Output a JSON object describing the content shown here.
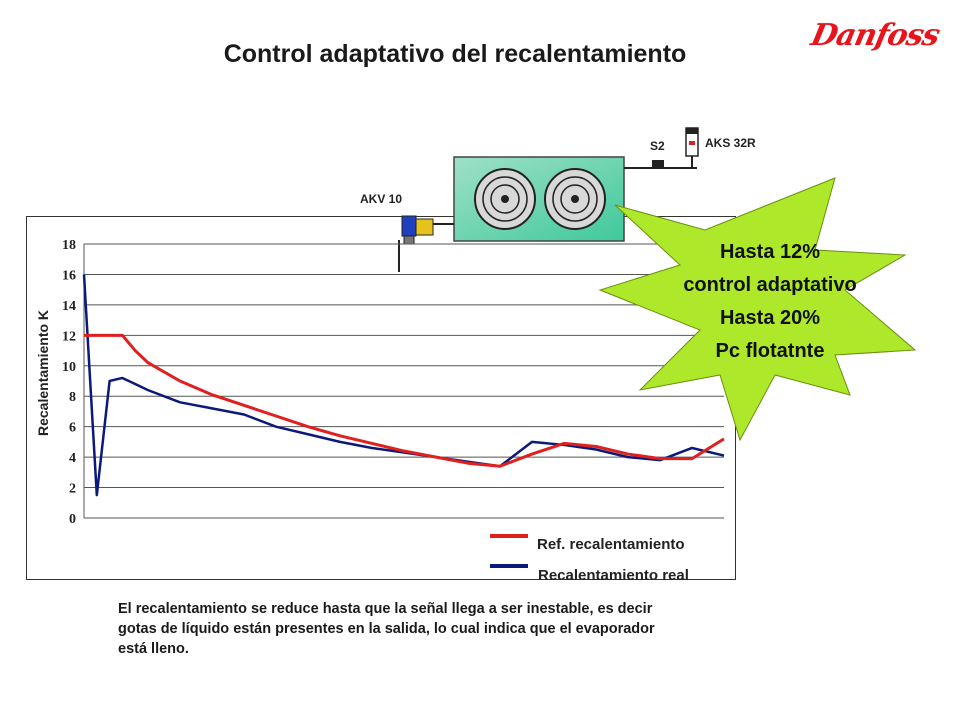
{
  "title": "Control adaptativo del recalentamiento",
  "brand": "Danfoss",
  "equipment": {
    "valve_label": "AKV 10",
    "sensor_s2_label": "S2",
    "pressure_sensor_label": "AKS 32R"
  },
  "callout": {
    "line1": "Hasta 12%",
    "line2": "control adaptativo",
    "line3": "Hasta 20%",
    "line4": "Pc flotatnte",
    "color": "#aee82a"
  },
  "note": "El recalentamiento se reduce hasta que la señal llega a ser inestable, es decir gotas de líquido están presentes en la salida, lo cual indica que el evaporador está lleno.",
  "chart_data": {
    "type": "line",
    "ylabel": "Recalentamiento K",
    "xlabel": "",
    "ylim": [
      0,
      18
    ],
    "yticks": [
      0,
      2,
      4,
      6,
      8,
      10,
      12,
      14,
      16,
      18
    ],
    "grid": true,
    "legend_placement": "bottom-right",
    "x": [
      0,
      2,
      4,
      6,
      8,
      10,
      15,
      20,
      25,
      30,
      35,
      40,
      45,
      50,
      55,
      60,
      65,
      70,
      75,
      80,
      85,
      90,
      95,
      100
    ],
    "series": [
      {
        "name": "Ref. recalentamiento",
        "color": "#e01f1f",
        "values": [
          12,
          12,
          12,
          12,
          11,
          10.2,
          9.0,
          8.1,
          7.4,
          6.7,
          6.0,
          5.4,
          4.9,
          4.4,
          4.0,
          3.6,
          3.4,
          4.2,
          4.9,
          4.7,
          4.2,
          3.9,
          3.9,
          5.2
        ]
      },
      {
        "name": "Recalentamiento real",
        "color": "#0b1a7a",
        "values": [
          16,
          1.5,
          9,
          9.2,
          8.8,
          8.4,
          7.6,
          7.2,
          6.8,
          6.0,
          5.5,
          5.0,
          4.6,
          4.3,
          4.0,
          3.7,
          3.4,
          5.0,
          4.8,
          4.5,
          4.0,
          3.8,
          4.6,
          4.1
        ]
      }
    ]
  }
}
